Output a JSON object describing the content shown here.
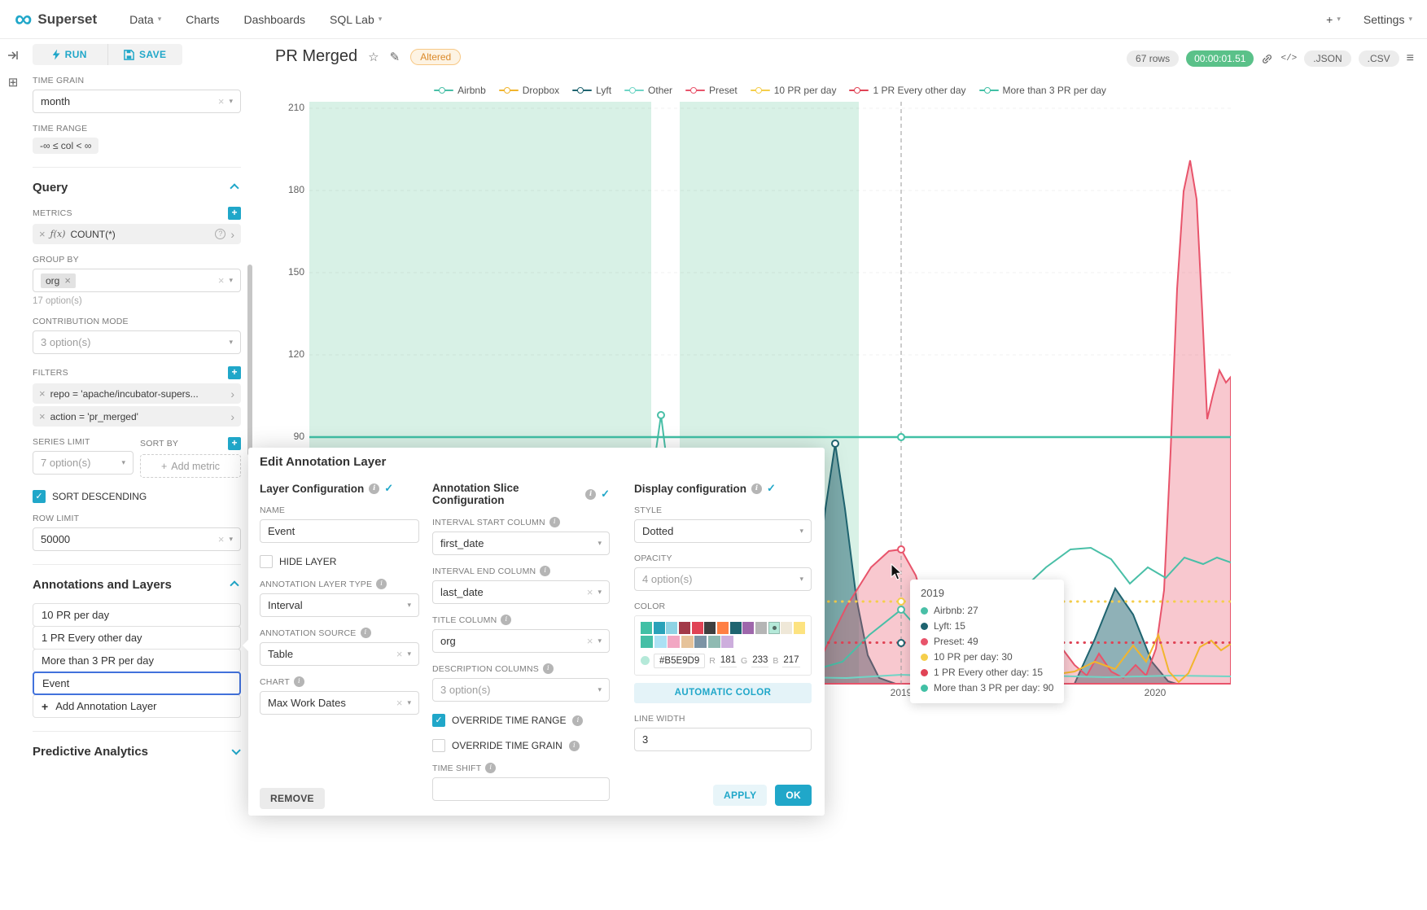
{
  "navbar": {
    "brand": "Superset",
    "logo_glyph": "∞",
    "menu": [
      {
        "label": "Data",
        "caret": true
      },
      {
        "label": "Charts",
        "caret": false
      },
      {
        "label": "Dashboards",
        "caret": false
      },
      {
        "label": "SQL Lab",
        "caret": true
      }
    ],
    "plus_label": "+",
    "settings_label": "Settings"
  },
  "controls": {
    "run_label": "RUN",
    "save_label": "SAVE",
    "time_grain": {
      "label": "TIME GRAIN",
      "value": "month"
    },
    "time_range": {
      "label": "TIME RANGE",
      "value": "-∞ ≤ col < ∞"
    },
    "query": {
      "title": "Query",
      "metrics": {
        "label": "METRICS",
        "fn": "ƒ(x)",
        "value": "COUNT(*)"
      },
      "group_by": {
        "label": "GROUP BY",
        "tag": "org",
        "hint": "17 option(s)"
      },
      "contribution_mode": {
        "label": "CONTRIBUTION MODE",
        "value": "3 option(s)"
      },
      "filters": {
        "label": "FILTERS",
        "items": [
          "repo = 'apache/incubator-supers...",
          "action = 'pr_merged'"
        ]
      },
      "series_limit": {
        "label": "SERIES LIMIT",
        "value": "7 option(s)"
      },
      "sort_by": {
        "label": "SORT BY",
        "placeholder": "Add metric"
      },
      "sort_descending": {
        "label": "SORT DESCENDING",
        "checked": true
      },
      "row_limit": {
        "label": "ROW LIMIT",
        "value": "50000"
      }
    },
    "annotations": {
      "title": "Annotations and Layers",
      "layers": [
        {
          "label": "10 PR per day",
          "selected": false
        },
        {
          "label": "1 PR Every other day",
          "selected": false
        },
        {
          "label": "More than 3 PR per day",
          "selected": false
        },
        {
          "label": "Event",
          "selected": true
        }
      ],
      "add_label": "Add Annotation Layer"
    },
    "predictive": {
      "title": "Predictive Analytics"
    }
  },
  "chart": {
    "title": "PR Merged",
    "altered_badge": "Altered",
    "rows_label": "67 rows",
    "timer": "00:00:01.51",
    "code_icon_label": "</>",
    "export_json": ".JSON",
    "export_csv": ".CSV",
    "x_ticks": [
      "2019",
      "2020"
    ]
  },
  "legend": [
    {
      "label": "Airbnb",
      "color": "#49BFA7"
    },
    {
      "label": "Dropbox",
      "color": "#F1B52E"
    },
    {
      "label": "Lyft",
      "color": "#1F6470"
    },
    {
      "label": "Other",
      "color": "#6FD5C6"
    },
    {
      "label": "Preset",
      "color": "#E8546B"
    },
    {
      "label": "10 PR per day",
      "color": "#F5CE4B"
    },
    {
      "label": "1 PR Every other day",
      "color": "#E04355"
    },
    {
      "label": "More than 3 PR per day",
      "color": "#41C0A5"
    }
  ],
  "tooltip": {
    "title": "2019",
    "items": [
      {
        "label": "Airbnb",
        "value": "27",
        "color": "#49BFA7"
      },
      {
        "label": "Lyft",
        "value": "15",
        "color": "#1F6470"
      },
      {
        "label": "Preset",
        "value": "49",
        "color": "#E8546B"
      },
      {
        "label": "10 PR per day",
        "value": "30",
        "color": "#F5CE4B"
      },
      {
        "label": "1 PR Every other day",
        "value": "15",
        "color": "#E04355"
      },
      {
        "label": "More than 3 PR per day",
        "value": "90",
        "color": "#41C0A5"
      }
    ]
  },
  "chart_data": {
    "type": "line",
    "title": "PR Merged",
    "x_ticks": [
      "2019",
      "2020"
    ],
    "y_range": [
      0,
      210
    ],
    "y_ticks": [
      90,
      120,
      150,
      180,
      210
    ],
    "values_at_2019": {
      "Airbnb": 27,
      "Lyft": 15,
      "Preset": 49
    },
    "annotation_lines": [
      {
        "name": "10 PR per day",
        "value": 30,
        "style": "dotted",
        "color": "#F5CE4B"
      },
      {
        "name": "1 PR Every other day",
        "value": 15,
        "style": "dotted",
        "color": "#E04355"
      },
      {
        "name": "More than 3 PR per day",
        "value": 90,
        "style": "solid",
        "color": "#41C0A5"
      }
    ],
    "interval_bands_color": "#D8F1E6",
    "legend_position": "top"
  },
  "modal": {
    "title": "Edit Annotation Layer",
    "layer_config": {
      "title": "Layer Configuration",
      "name_label": "NAME",
      "name_value": "Event",
      "hide_layer_label": "HIDE LAYER",
      "type_label": "ANNOTATION LAYER TYPE",
      "type_value": "Interval",
      "source_label": "ANNOTATION SOURCE",
      "source_value": "Table",
      "chart_label": "CHART",
      "chart_value": "Max Work Dates"
    },
    "slice_config": {
      "title": "Annotation Slice Configuration",
      "interval_start_label": "INTERVAL START COLUMN",
      "interval_start_value": "first_date",
      "interval_end_label": "INTERVAL END COLUMN",
      "interval_end_value": "last_date",
      "title_column_label": "TITLE COLUMN",
      "title_column_value": "org",
      "description_columns_label": "DESCRIPTION COLUMNS",
      "description_columns_value": "3 option(s)",
      "override_time_range_label": "OVERRIDE TIME RANGE",
      "override_time_grain_label": "OVERRIDE TIME GRAIN",
      "time_shift_label": "TIME SHIFT"
    },
    "display_config": {
      "title": "Display configuration",
      "style_label": "STYLE",
      "style_value": "Dotted",
      "opacity_label": "OPACITY",
      "opacity_value": "4 option(s)",
      "color_label": "COLOR",
      "hex": "#B5E9D9",
      "r_label": "R",
      "r": "181",
      "g_label": "G",
      "g": "233",
      "b_label": "B",
      "b": "217",
      "automatic_color_label": "AUTOMATIC COLOR",
      "line_width_label": "LINE WIDTH",
      "line_width_value": "3",
      "swatches_row1": [
        "#41C0A5",
        "#2AA2B9",
        "#8FD3E4",
        "#A23A48",
        "#E04355",
        "#3F3F3F",
        "#FF7F44",
        "#1F6470",
        "#9E67AB",
        "#B5B5B5",
        "#B5E9D9",
        "#EFE8D8",
        "#FDE380"
      ],
      "swatches_row2": [
        "#45BFA6",
        "#ACE1F4",
        "#F2A7C3",
        "#E6C39A",
        "#7C94A5",
        "#8FBAB2",
        "#CDAEDD"
      ],
      "selected_swatch": "#B5E9D9"
    },
    "remove_label": "REMOVE",
    "apply_label": "APPLY",
    "ok_label": "OK"
  }
}
